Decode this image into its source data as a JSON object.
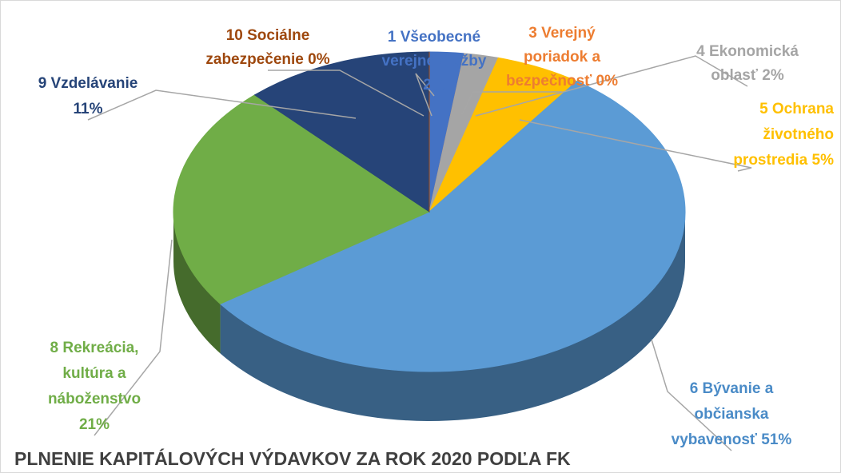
{
  "chart_data": {
    "type": "pie",
    "title": "PLNENIE KAPITÁLOVÝCH VÝDAVKOV ZA ROK 2020 PODĽA FK",
    "categories": [
      [
        "1 Všeobecné",
        "verejné služby"
      ],
      [
        "3 Verejný",
        "poriadok a",
        "bezpečnosť"
      ],
      [
        "4 Ekonomická",
        "oblasť"
      ],
      [
        "5 Ochrana",
        "životného",
        "prostredia"
      ],
      [
        "6 Bývanie a",
        "občianska",
        "vybavenosť"
      ],
      [
        "8 Rekreácia,",
        "kultúra a",
        "náboženstvo"
      ],
      [
        "9 Vzdelávanie"
      ],
      [
        "10 Sociálne",
        "zabezpečenie"
      ]
    ],
    "values": [
      2,
      0,
      2,
      5,
      51,
      21,
      11,
      0
    ],
    "value_labels": [
      "2%",
      "0%",
      "2%",
      "5%",
      "51%",
      "21%",
      "11%",
      "0%"
    ],
    "colors": [
      "#4472c4",
      "#ed7d31",
      "#a5a5a5",
      "#ffc000",
      "#5b9bd5",
      "#70ad47",
      "#264478",
      "#9e480e"
    ]
  }
}
